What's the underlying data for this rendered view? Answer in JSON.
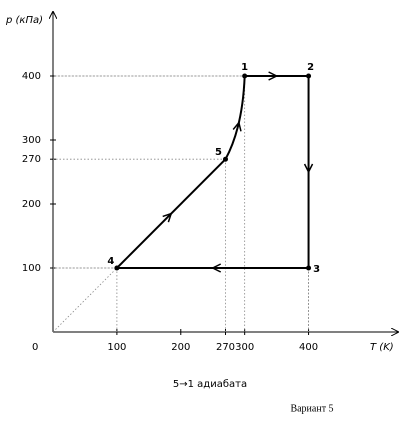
{
  "chart_data": {
    "type": "cycle",
    "x_label": "T (K)",
    "y_label": "p (кПа)",
    "origin_label": "0",
    "xlim": [
      0,
      540
    ],
    "ylim": [
      0,
      500
    ],
    "xticks": [
      100,
      200,
      270,
      300,
      400
    ],
    "yticks": [
      100,
      200,
      270,
      300,
      400
    ],
    "color": "#000000",
    "points": [
      {
        "label": "1",
        "x": 300,
        "y": 400
      },
      {
        "label": "2",
        "x": 400,
        "y": 400
      },
      {
        "label": "3",
        "x": 400,
        "y": 100
      },
      {
        "label": "4",
        "x": 100,
        "y": 100
      },
      {
        "label": "5",
        "x": 270,
        "y": 270
      }
    ],
    "annotation": "5→1 адиабата",
    "caption": "Вариант 5"
  }
}
